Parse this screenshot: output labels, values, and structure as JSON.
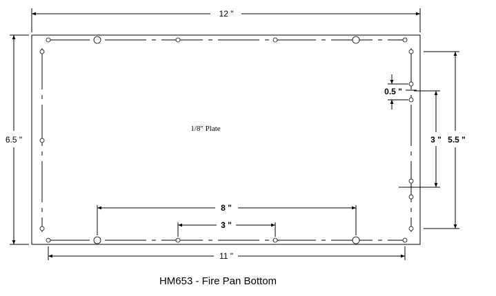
{
  "drawing": {
    "caption": "HM653 - Fire Pan Bottom",
    "plate_label": "1/8\" Plate",
    "dimensions": {
      "overall_width": "12 \"",
      "overall_height": "6.5 \"",
      "hole_span_width": "11 \"",
      "large_hole_span": "8 \"",
      "center_hole_span": "3 \"",
      "right_outer_span": "5.5 \"",
      "right_inner_span": "3 \"",
      "right_small_gap": "0.5 \""
    }
  }
}
